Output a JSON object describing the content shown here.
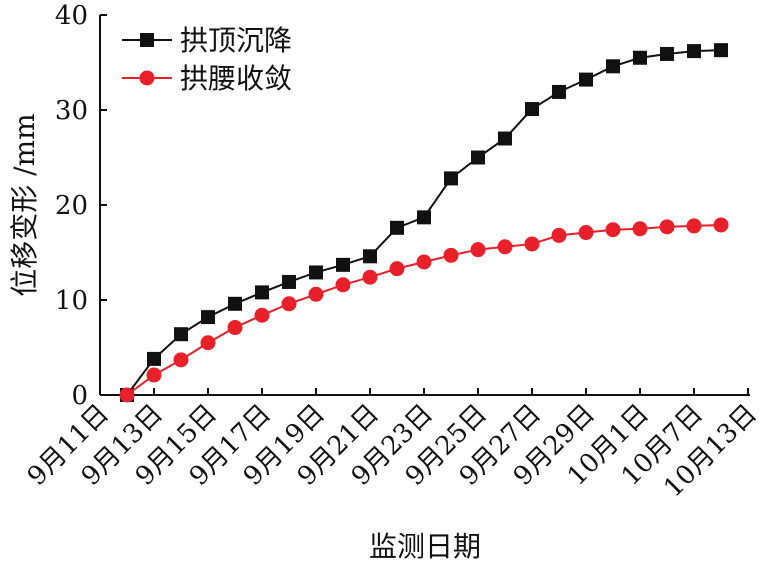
{
  "chart_data": {
    "type": "line",
    "title": "",
    "xlabel": "监测日期",
    "ylabel": "位移变形 /mm",
    "ylim": [
      0,
      40
    ],
    "yticks": [
      "0",
      "10",
      "20",
      "30",
      "40"
    ],
    "xtick_labels": [
      "9月11日",
      "9月13日",
      "9月15日",
      "9月17日",
      "9月19日",
      "9月21日",
      "9月23日",
      "9月25日",
      "9月27日",
      "9月29日",
      "10月1日",
      "10月7日",
      "10月13日"
    ],
    "legend_position": "top-left",
    "grid": false,
    "series": [
      {
        "name": "拱顶沉降",
        "color": "#111111",
        "marker": "square",
        "values": [
          0,
          3.8,
          6.4,
          8.2,
          9.6,
          10.8,
          11.9,
          12.9,
          13.7,
          14.6,
          17.6,
          18.7,
          22.8,
          25.0,
          27.0,
          30.1,
          31.9,
          33.2,
          34.6,
          35.5,
          35.9,
          36.2,
          36.3
        ]
      },
      {
        "name": "拱腰收敛",
        "color": "#e8202a",
        "marker": "circle",
        "values": [
          0,
          2.1,
          3.7,
          5.5,
          7.1,
          8.4,
          9.6,
          10.6,
          11.6,
          12.4,
          13.3,
          14.0,
          14.7,
          15.3,
          15.6,
          15.9,
          16.8,
          17.1,
          17.4,
          17.5,
          17.7,
          17.8,
          17.9
        ]
      }
    ]
  }
}
